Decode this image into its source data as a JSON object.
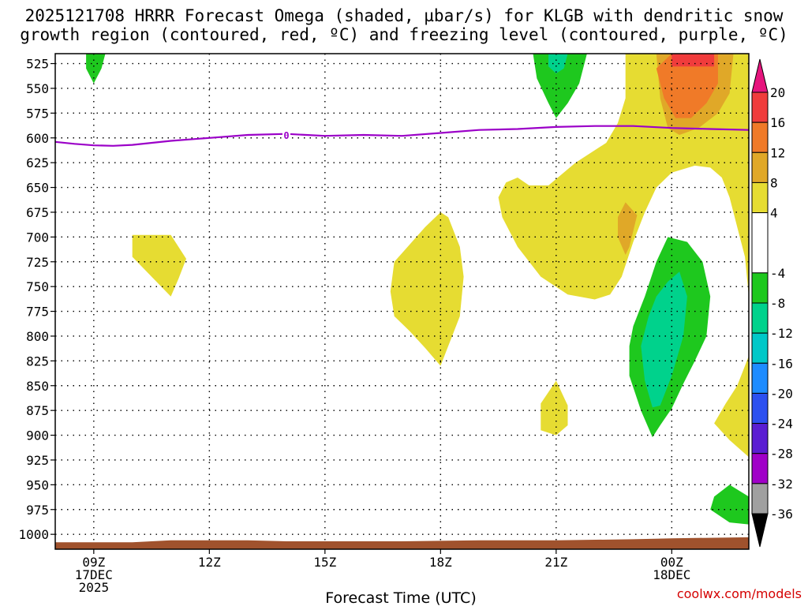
{
  "title_line1": "2025121708 HRRR Forecast Omega (shaded, µbar/s) for KLGB with dendritic snow",
  "title_line2": "growth region (contoured, red, ºC) and freezing level (contoured, purple, ºC)",
  "credit": "coolwx.com/models",
  "colors": {
    "freezing_line": "#9b00c8",
    "terrain": "#a0522d",
    "grid": "#000000"
  },
  "chart_data": {
    "type": "heatmap",
    "title": "2025121708 HRRR Forecast Omega (shaded, µbar/s) for KLGB with dendritic snow growth region (contoured, red, ºC) and freezing level (contoured, purple, ºC)",
    "xlabel": "Forecast Time (UTC)",
    "ylabel": "",
    "x_range_hours": [
      8,
      26
    ],
    "y_range_hpa": [
      1015,
      515
    ],
    "y_axis": "pressure (hPa), inverted",
    "x_ticks": [
      {
        "hour": 9,
        "label": "09Z",
        "sub1": "17DEC",
        "sub2": "2025"
      },
      {
        "hour": 12,
        "label": "12Z",
        "sub1": "",
        "sub2": ""
      },
      {
        "hour": 15,
        "label": "15Z",
        "sub1": "",
        "sub2": ""
      },
      {
        "hour": 18,
        "label": "18Z",
        "sub1": "",
        "sub2": ""
      },
      {
        "hour": 21,
        "label": "21Z",
        "sub1": "",
        "sub2": ""
      },
      {
        "hour": 24,
        "label": "00Z",
        "sub1": "18DEC",
        "sub2": ""
      }
    ],
    "y_ticks": [
      525,
      550,
      575,
      600,
      625,
      650,
      675,
      700,
      725,
      750,
      775,
      800,
      825,
      850,
      875,
      900,
      925,
      950,
      975,
      1000
    ],
    "grid": true,
    "colorbar": {
      "labels": [
        "20",
        "16",
        "12",
        "8",
        "4",
        "-4",
        "-8",
        "-12",
        "-16",
        "-20",
        "-24",
        "-28",
        "-32",
        "-36"
      ],
      "segments": [
        {
          "from": 16,
          "to": 20,
          "color": "#f03c3c"
        },
        {
          "from": 12,
          "to": 16,
          "color": "#f07a28"
        },
        {
          "from": 8,
          "to": 12,
          "color": "#e0a828"
        },
        {
          "from": 4,
          "to": 8,
          "color": "#e6dc32"
        },
        {
          "from": -4,
          "to": 4,
          "color": "#ffffff"
        },
        {
          "from": -8,
          "to": -4,
          "color": "#1ec81e"
        },
        {
          "from": -12,
          "to": -8,
          "color": "#00d28c"
        },
        {
          "from": -16,
          "to": -12,
          "color": "#00c8c8"
        },
        {
          "from": -20,
          "to": -16,
          "color": "#1e8cff"
        },
        {
          "from": -24,
          "to": -20,
          "color": "#2d50f0"
        },
        {
          "from": -28,
          "to": -24,
          "color": "#5a1ed2"
        },
        {
          "from": -32,
          "to": -28,
          "color": "#a000c8"
        },
        {
          "from": -36,
          "to": -32,
          "color": "#a0a0a0"
        }
      ],
      "top_arrow_color": "#e6147d",
      "bottom_arrow_color": "#000000"
    },
    "omega_regions": [
      {
        "name": "orange-top",
        "level": 12,
        "color": "#e0a828",
        "points": [
          [
            23.8,
            515
          ],
          [
            26,
            515
          ],
          [
            26,
            660
          ],
          [
            25.8,
            635
          ],
          [
            25.5,
            625
          ],
          [
            25,
            618
          ],
          [
            24.5,
            615
          ],
          [
            24,
            613
          ],
          [
            23.8,
            612
          ],
          [
            23.8,
            580
          ]
        ]
      },
      {
        "name": "yellow-large",
        "level": 4,
        "color": "#e6dc32",
        "points": [
          [
            22.8,
            515
          ],
          [
            26,
            515
          ],
          [
            26,
            760
          ],
          [
            25.9,
            720
          ],
          [
            25.7,
            690
          ],
          [
            25.5,
            660
          ],
          [
            25.3,
            640
          ],
          [
            25,
            630
          ],
          [
            24.6,
            628
          ],
          [
            24,
            635
          ],
          [
            23.6,
            650
          ],
          [
            23.3,
            675
          ],
          [
            23.0,
            705
          ],
          [
            22.7,
            740
          ],
          [
            22.4,
            758
          ],
          [
            22,
            763
          ],
          [
            21.3,
            758
          ],
          [
            20.6,
            740
          ],
          [
            20.0,
            710
          ],
          [
            19.6,
            680
          ],
          [
            19.5,
            660
          ],
          [
            19.7,
            645
          ],
          [
            20,
            640
          ],
          [
            20.3,
            648
          ],
          [
            20.8,
            648
          ],
          [
            21.5,
            625
          ],
          [
            22.3,
            605
          ],
          [
            22.6,
            585
          ],
          [
            22.8,
            560
          ]
        ]
      },
      {
        "name": "orange-inner",
        "level": 8,
        "color": "#e0a828",
        "points": [
          [
            23.6,
            515
          ],
          [
            25.6,
            515
          ],
          [
            25.5,
            555
          ],
          [
            25.2,
            575
          ],
          [
            24.7,
            590
          ],
          [
            24.2,
            597
          ],
          [
            23.9,
            590
          ],
          [
            23.7,
            560
          ]
        ]
      },
      {
        "name": "orange-mid",
        "level": 12,
        "color": "#f07a28",
        "points": [
          [
            24.0,
            515
          ],
          [
            25.2,
            515
          ],
          [
            25.2,
            545
          ],
          [
            24.9,
            565
          ],
          [
            24.5,
            580
          ],
          [
            24.1,
            580
          ],
          [
            23.8,
            560
          ],
          [
            23.6,
            530
          ]
        ]
      },
      {
        "name": "red-top",
        "level": 16,
        "color": "#f03c3c",
        "points": [
          [
            24,
            515
          ],
          [
            25.1,
            515
          ],
          [
            25.1,
            528
          ],
          [
            24,
            528
          ]
        ]
      },
      {
        "name": "orange-small",
        "level": 8,
        "color": "#e0a828",
        "points": [
          [
            22.6,
            680
          ],
          [
            22.8,
            665
          ],
          [
            23.1,
            678
          ],
          [
            22.9,
            710
          ],
          [
            22.8,
            718
          ],
          [
            22.6,
            700
          ]
        ]
      },
      {
        "name": "green-top",
        "level": -4,
        "color": "#1ec81e",
        "points": [
          [
            20.4,
            515
          ],
          [
            21.8,
            515
          ],
          [
            21.6,
            545
          ],
          [
            21.3,
            565
          ],
          [
            21.0,
            580
          ],
          [
            20.8,
            565
          ],
          [
            20.5,
            540
          ]
        ]
      },
      {
        "name": "teal-top",
        "level": -8,
        "color": "#00d28c",
        "points": [
          [
            20.8,
            515
          ],
          [
            21.3,
            515
          ],
          [
            21.2,
            530
          ],
          [
            21.0,
            535
          ],
          [
            20.8,
            528
          ]
        ]
      },
      {
        "name": "green-mid",
        "level": -4,
        "color": "#1ec81e",
        "points": [
          [
            23.9,
            700
          ],
          [
            24.4,
            705
          ],
          [
            24.8,
            725
          ],
          [
            25.0,
            760
          ],
          [
            24.9,
            800
          ],
          [
            24.6,
            825
          ],
          [
            24.3,
            848
          ],
          [
            24.0,
            873
          ],
          [
            23.7,
            890
          ],
          [
            23.5,
            902
          ],
          [
            23.2,
            875
          ],
          [
            22.9,
            840
          ],
          [
            22.9,
            810
          ],
          [
            23.0,
            790
          ],
          [
            23.3,
            760
          ],
          [
            23.6,
            725
          ]
        ]
      },
      {
        "name": "teal-mid",
        "level": -8,
        "color": "#00d28c",
        "points": [
          [
            23.9,
            745
          ],
          [
            24.2,
            735
          ],
          [
            24.4,
            760
          ],
          [
            24.3,
            800
          ],
          [
            24.0,
            840
          ],
          [
            23.7,
            870
          ],
          [
            23.5,
            872
          ],
          [
            23.3,
            845
          ],
          [
            23.2,
            810
          ],
          [
            23.4,
            780
          ],
          [
            23.6,
            760
          ]
        ]
      },
      {
        "name": "yellow-left",
        "level": 4,
        "color": "#e6dc32",
        "points": [
          [
            10,
            698
          ],
          [
            11,
            698
          ],
          [
            11.4,
            722
          ],
          [
            11.2,
            742
          ],
          [
            11.0,
            760
          ],
          [
            10.5,
            740
          ],
          [
            10,
            720
          ]
        ]
      },
      {
        "name": "yellow-center",
        "level": 4,
        "color": "#e6dc32",
        "points": [
          [
            16.8,
            725
          ],
          [
            17.6,
            690
          ],
          [
            18.0,
            675
          ],
          [
            18.2,
            680
          ],
          [
            18.5,
            710
          ],
          [
            18.6,
            740
          ],
          [
            18.5,
            780
          ],
          [
            18.3,
            800
          ],
          [
            18.0,
            830
          ],
          [
            17.6,
            812
          ],
          [
            17.2,
            795
          ],
          [
            16.8,
            780
          ],
          [
            16.7,
            755
          ]
        ]
      },
      {
        "name": "yellow-small",
        "level": 4,
        "color": "#e6dc32",
        "points": [
          [
            20.6,
            868
          ],
          [
            21.0,
            845
          ],
          [
            21.3,
            870
          ],
          [
            21.3,
            890
          ],
          [
            21.0,
            900
          ],
          [
            20.6,
            895
          ]
        ]
      },
      {
        "name": "yellow-right",
        "level": 4,
        "color": "#e6dc32",
        "points": [
          [
            26,
            820
          ],
          [
            26,
            922
          ],
          [
            25.5,
            905
          ],
          [
            25.1,
            888
          ],
          [
            25.4,
            868
          ],
          [
            25.7,
            850
          ]
        ]
      },
      {
        "name": "green-bottom",
        "level": -4,
        "color": "#1ec81e",
        "points": [
          [
            25.1,
            962
          ],
          [
            25.5,
            950
          ],
          [
            26,
            962
          ],
          [
            26,
            990
          ],
          [
            25.5,
            988
          ],
          [
            25.0,
            975
          ]
        ]
      },
      {
        "name": "green-leftedge",
        "level": -4,
        "color": "#1ec81e",
        "points": [
          [
            8.8,
            515
          ],
          [
            9.3,
            515
          ],
          [
            9.2,
            530
          ],
          [
            9.0,
            545
          ],
          [
            8.8,
            530
          ]
        ]
      }
    ],
    "freezing_level": {
      "label": "0",
      "label_at": [
        14,
        598
      ],
      "points": [
        [
          8,
          604
        ],
        [
          8.5,
          606
        ],
        [
          9,
          607.5
        ],
        [
          9.5,
          608
        ],
        [
          10,
          607
        ],
        [
          11,
          603
        ],
        [
          12,
          600
        ],
        [
          13,
          597
        ],
        [
          14,
          596
        ],
        [
          15,
          598
        ],
        [
          16,
          597
        ],
        [
          17,
          598
        ],
        [
          18,
          595
        ],
        [
          19,
          592
        ],
        [
          20,
          591
        ],
        [
          21,
          589
        ],
        [
          22,
          588
        ],
        [
          23,
          588
        ],
        [
          24,
          590
        ],
        [
          25,
          591
        ],
        [
          26,
          592
        ]
      ]
    },
    "terrain": {
      "points": [
        [
          8,
          1008
        ],
        [
          10,
          1008
        ],
        [
          11,
          1006
        ],
        [
          13,
          1006
        ],
        [
          14,
          1007
        ],
        [
          17,
          1007
        ],
        [
          19,
          1006
        ],
        [
          21,
          1006
        ],
        [
          23,
          1005
        ],
        [
          24,
          1004
        ],
        [
          26,
          1003
        ]
      ]
    }
  }
}
